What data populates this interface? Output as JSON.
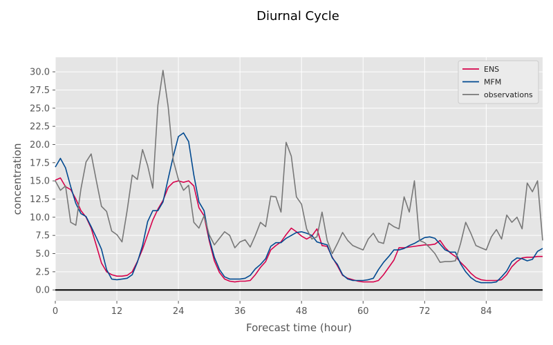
{
  "chart_data": {
    "type": "line",
    "title": "Diurnal Cycle",
    "xlabel": "Forecast time (hour)",
    "ylabel": "concentration",
    "xlim": [
      0,
      95
    ],
    "ylim": [
      -1.5,
      32
    ],
    "x_ticks": [
      0,
      12,
      24,
      36,
      48,
      60,
      72,
      84
    ],
    "y_ticks": [
      0.0,
      2.5,
      5.0,
      7.5,
      10.0,
      12.5,
      15.0,
      17.5,
      20.0,
      22.5,
      25.0,
      27.5,
      30.0
    ],
    "grid": true,
    "legend_position": "top-right",
    "reference_line": 0,
    "x": [
      0,
      1,
      2,
      3,
      4,
      5,
      6,
      7,
      8,
      9,
      10,
      11,
      12,
      13,
      14,
      15,
      16,
      17,
      18,
      19,
      20,
      21,
      22,
      23,
      24,
      25,
      26,
      27,
      28,
      29,
      30,
      31,
      32,
      33,
      34,
      35,
      36,
      37,
      38,
      39,
      40,
      41,
      42,
      43,
      44,
      45,
      46,
      47,
      48,
      49,
      50,
      51,
      52,
      53,
      54,
      55,
      56,
      57,
      58,
      59,
      60,
      61,
      62,
      63,
      64,
      65,
      66,
      67,
      68,
      69,
      70,
      71,
      72,
      73,
      74,
      75,
      76,
      77,
      78,
      79,
      80,
      81,
      82,
      83,
      84,
      85,
      86,
      87,
      88,
      89,
      90,
      91,
      92,
      93,
      94,
      95
    ],
    "series": [
      {
        "name": "ENS",
        "color": "#d6004a",
        "values": [
          15.1,
          15.4,
          14.2,
          13.8,
          12.5,
          10.9,
          10.0,
          8.5,
          6.1,
          3.7,
          2.5,
          2.1,
          1.9,
          1.9,
          2.0,
          2.5,
          3.9,
          5.6,
          7.6,
          9.6,
          11.1,
          12.3,
          14.1,
          14.8,
          15.0,
          14.8,
          15.0,
          14.3,
          11.3,
          10.2,
          6.8,
          4.0,
          2.4,
          1.5,
          1.2,
          1.1,
          1.2,
          1.2,
          1.3,
          2.1,
          3.1,
          3.9,
          5.5,
          6.1,
          6.6,
          7.6,
          8.5,
          8.0,
          7.4,
          7.0,
          7.4,
          8.4,
          6.1,
          6.0,
          4.5,
          3.3,
          2.0,
          1.6,
          1.4,
          1.2,
          1.1,
          1.1,
          1.1,
          1.3,
          2.1,
          3.1,
          4.1,
          5.8,
          5.8,
          5.9,
          6.0,
          6.1,
          6.2,
          6.2,
          6.3,
          6.8,
          5.8,
          5.1,
          4.6,
          3.8,
          3.1,
          2.3,
          1.7,
          1.4,
          1.3,
          1.3,
          1.3,
          1.4,
          2.1,
          3.2,
          3.9,
          4.4,
          4.5,
          4.5,
          4.6,
          4.6
        ]
      },
      {
        "name": "MFM",
        "color": "#004990",
        "values": [
          16.9,
          18.1,
          16.8,
          14.2,
          11.9,
          10.5,
          10.1,
          8.7,
          7.2,
          5.6,
          2.8,
          1.5,
          1.4,
          1.5,
          1.6,
          2.1,
          3.8,
          6.1,
          9.4,
          10.9,
          10.9,
          12.1,
          15.3,
          18.4,
          21.1,
          21.6,
          20.4,
          15.8,
          12.1,
          10.9,
          7.1,
          4.5,
          2.8,
          1.8,
          1.5,
          1.5,
          1.5,
          1.6,
          2.0,
          2.9,
          3.5,
          4.3,
          6.0,
          6.5,
          6.5,
          7.1,
          7.5,
          7.9,
          8.0,
          7.8,
          7.5,
          6.6,
          6.4,
          6.2,
          4.4,
          3.5,
          2.1,
          1.5,
          1.3,
          1.3,
          1.3,
          1.4,
          1.6,
          2.8,
          3.8,
          4.6,
          5.5,
          5.5,
          5.7,
          6.1,
          6.4,
          6.8,
          7.2,
          7.3,
          7.1,
          6.3,
          5.5,
          5.2,
          5.2,
          3.6,
          2.5,
          1.7,
          1.2,
          1.0,
          1.0,
          1.0,
          1.1,
          1.8,
          2.6,
          3.9,
          4.4,
          4.3,
          4.0,
          4.2,
          5.3,
          5.7
        ]
      },
      {
        "name": "observations",
        "color": "#777777",
        "values": [
          15.0,
          13.7,
          14.3,
          9.3,
          8.9,
          13.9,
          17.6,
          18.7,
          15.0,
          11.5,
          10.8,
          8.1,
          7.6,
          6.6,
          10.9,
          15.8,
          15.2,
          19.3,
          17.1,
          14.0,
          25.4,
          30.2,
          25.2,
          17.8,
          15.2,
          13.7,
          14.4,
          9.3,
          8.5,
          10.2,
          7.6,
          6.2,
          7.1,
          8.0,
          7.5,
          5.8,
          6.6,
          6.9,
          5.9,
          7.5,
          9.3,
          8.7,
          12.9,
          12.8,
          10.7,
          20.3,
          18.4,
          12.8,
          11.8,
          8.4,
          7.0,
          7.3,
          10.7,
          6.8,
          5.0,
          6.4,
          7.9,
          6.8,
          6.1,
          5.8,
          5.5,
          7.0,
          7.8,
          6.6,
          6.4,
          9.2,
          8.7,
          8.4,
          12.8,
          10.7,
          15.0,
          6.8,
          6.5,
          5.8,
          5.0,
          3.8,
          3.9,
          3.9,
          4.0,
          6.4,
          9.3,
          7.8,
          6.1,
          5.8,
          5.5,
          7.3,
          8.3,
          7.0,
          10.3,
          9.3,
          10.0,
          8.4,
          14.7,
          13.5,
          15.0,
          6.8
        ]
      }
    ]
  }
}
